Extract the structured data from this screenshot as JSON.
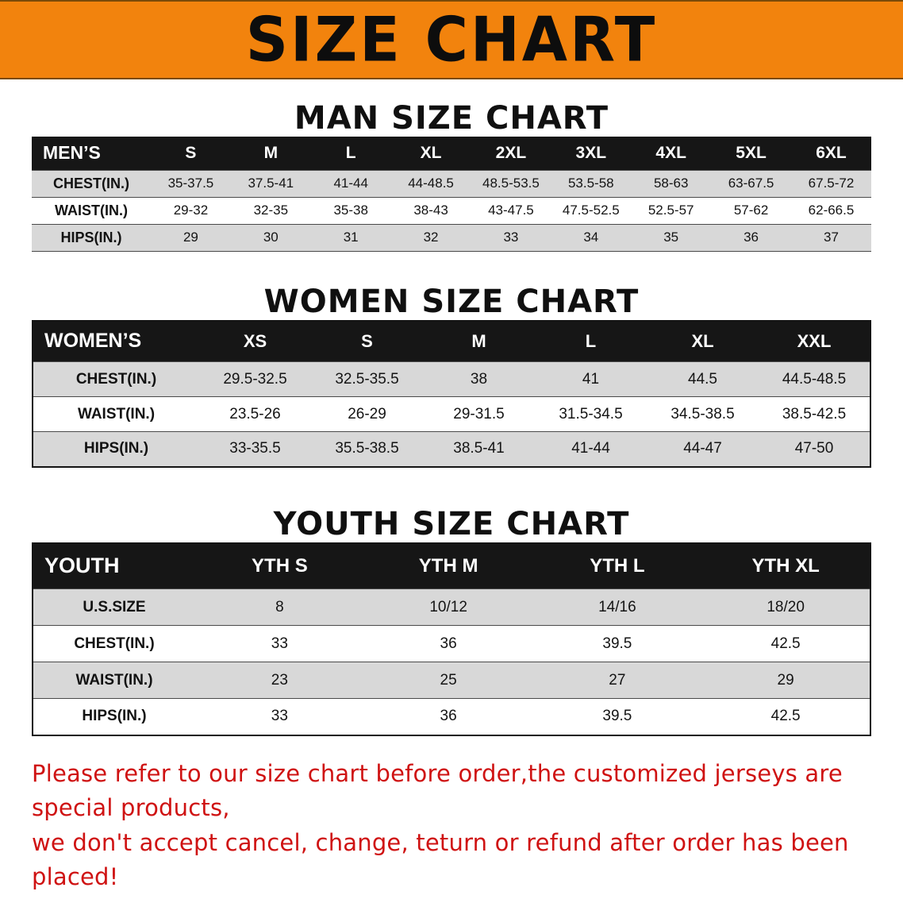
{
  "banner": {
    "title": "SIZE CHART"
  },
  "colors": {
    "banner_orange": "#f2830d",
    "header_black": "#161616",
    "stripe_gray": "#d8d8d8",
    "note_red": "#cf1212"
  },
  "men": {
    "heading": "MAN SIZE CHART",
    "table": {
      "header": [
        "MEN’S",
        "S",
        "M",
        "L",
        "XL",
        "2XL",
        "3XL",
        "4XL",
        "5XL",
        "6XL"
      ],
      "rows": [
        {
          "label": "CHEST(IN.)",
          "values": [
            "35-37.5",
            "37.5-41",
            "41-44",
            "44-48.5",
            "48.5-53.5",
            "53.5-58",
            "58-63",
            "63-67.5",
            "67.5-72"
          ]
        },
        {
          "label": "WAIST(IN.)",
          "values": [
            "29-32",
            "32-35",
            "35-38",
            "38-43",
            "43-47.5",
            "47.5-52.5",
            "52.5-57",
            "57-62",
            "62-66.5"
          ]
        },
        {
          "label": "HIPS(IN.)",
          "values": [
            "29",
            "30",
            "31",
            "32",
            "33",
            "34",
            "35",
            "36",
            "37"
          ]
        }
      ]
    }
  },
  "women": {
    "heading": "WOMEN SIZE CHART",
    "table": {
      "header": [
        "WOMEN’S",
        "XS",
        "S",
        "M",
        "L",
        "XL",
        "XXL"
      ],
      "rows": [
        {
          "label": "CHEST(IN.)",
          "values": [
            "29.5-32.5",
            "32.5-35.5",
            "38",
            "41",
            "44.5",
            "44.5-48.5"
          ]
        },
        {
          "label": "WAIST(IN.)",
          "values": [
            "23.5-26",
            "26-29",
            "29-31.5",
            "31.5-34.5",
            "34.5-38.5",
            "38.5-42.5"
          ]
        },
        {
          "label": "HIPS(IN.)",
          "values": [
            "33-35.5",
            "35.5-38.5",
            "38.5-41",
            "41-44",
            "44-47",
            "47-50"
          ]
        }
      ]
    }
  },
  "youth": {
    "heading": "YOUTH SIZE CHART",
    "table": {
      "header": [
        "YOUTH",
        "YTH S",
        "YTH M",
        "YTH L",
        "YTH XL"
      ],
      "rows": [
        {
          "label": "U.S.SIZE",
          "values": [
            "8",
            "10/12",
            "14/16",
            "18/20"
          ]
        },
        {
          "label": "CHEST(IN.)",
          "values": [
            "33",
            "36",
            "39.5",
            "42.5"
          ]
        },
        {
          "label": "WAIST(IN.)",
          "values": [
            "23",
            "25",
            "27",
            "29"
          ]
        },
        {
          "label": "HIPS(IN.)",
          "values": [
            "33",
            "36",
            "39.5",
            "42.5"
          ]
        }
      ]
    }
  },
  "footer": {
    "line1": "Please refer to our size chart before order,the customized jerseys are special products,",
    "line2": "we don't accept cancel, change, teturn or refund after order has been placed!"
  }
}
